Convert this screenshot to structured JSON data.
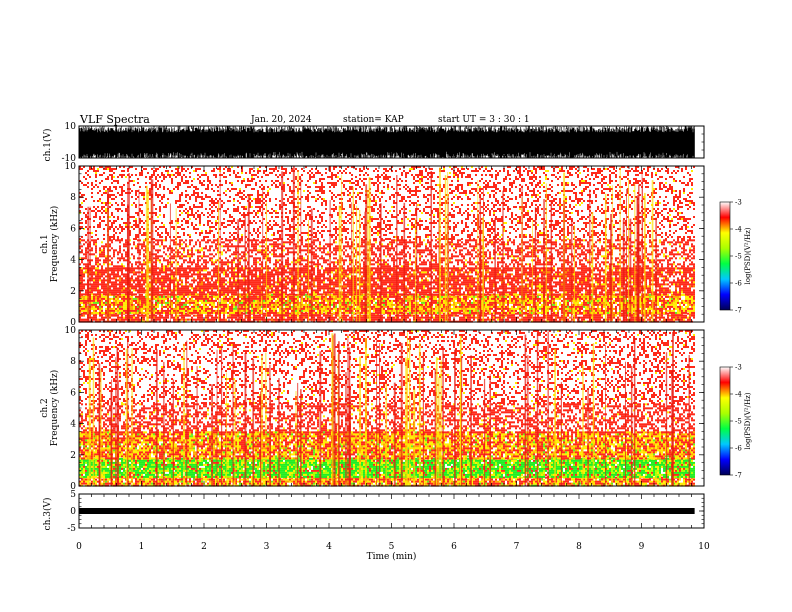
{
  "header": {
    "title": "VLF Spectra",
    "date": "Jan. 20, 2024",
    "station": "station= KAP",
    "start": "start  UT =  3 : 30 : 1"
  },
  "colors": {
    "spectrogram_bg": "#ffffff",
    "low": "#ff2a1a",
    "mid": "#ffee00",
    "high": "#22ee22",
    "cbar_stops": [
      "#000055",
      "#0000ff",
      "#00c8ff",
      "#00ff44",
      "#aaff00",
      "#ffff00",
      "#ff0000",
      "#ffffff"
    ]
  },
  "chart_data": [
    {
      "type": "line",
      "panel": "ch1-waveform",
      "ylabel": "ch.1(V)",
      "ylim": [
        -10,
        10
      ],
      "y_ticks": [
        "10",
        "-10"
      ],
      "description_values": {
        "amplitude_min_V": -10,
        "amplitude_max_V": 10
      }
    },
    {
      "type": "heatmap",
      "panel": "ch1-spectrogram",
      "ylabel": "ch.1\nFrequency (kHz)",
      "ylim": [
        0,
        10
      ],
      "y_ticks": [
        "0",
        "2",
        "4",
        "6",
        "8",
        "10"
      ],
      "xlim": [
        0,
        9.85
      ],
      "bands": [
        {
          "f_from": 0.0,
          "f_to": 0.6,
          "level": "dense-red"
        },
        {
          "f_from": 0.6,
          "f_to": 1.8,
          "level": "yellow-red"
        },
        {
          "f_from": 1.8,
          "f_to": 3.5,
          "level": "dense-red"
        },
        {
          "f_from": 3.5,
          "f_to": 5.3,
          "level": "medium-red"
        },
        {
          "f_from": 5.3,
          "f_to": 10.0,
          "level": "sparse-red"
        }
      ],
      "colorbar": {
        "label": "log(PSD)(V²/Hz)",
        "ticks": [
          "-3",
          "-4",
          "-5",
          "-6",
          "-7"
        ],
        "range": [
          -7,
          -3
        ]
      }
    },
    {
      "type": "heatmap",
      "panel": "ch2-spectrogram",
      "ylabel": "ch.2\nFrequency (kHz)",
      "ylim": [
        0,
        10
      ],
      "y_ticks": [
        "0",
        "2",
        "4",
        "6",
        "8",
        "10"
      ],
      "xlim": [
        0,
        9.85
      ],
      "bands": [
        {
          "f_from": 0.0,
          "f_to": 0.6,
          "level": "yellow-red"
        },
        {
          "f_from": 0.6,
          "f_to": 1.8,
          "level": "green"
        },
        {
          "f_from": 1.8,
          "f_to": 3.5,
          "level": "yellow-red"
        },
        {
          "f_from": 3.5,
          "f_to": 5.3,
          "level": "medium-red"
        },
        {
          "f_from": 5.3,
          "f_to": 10.0,
          "level": "sparse-red"
        }
      ],
      "colorbar": {
        "label": "log(PSD)(V²/Hz)",
        "ticks": [
          "-3",
          "-4",
          "-5",
          "-6",
          "-7"
        ],
        "range": [
          -7,
          -3
        ]
      }
    },
    {
      "type": "line",
      "panel": "ch3-waveform",
      "ylabel": "ch.3(V)",
      "ylim": [
        -5,
        5
      ],
      "y_ticks": [
        "5",
        "0",
        "-5"
      ],
      "level_V": 0
    }
  ],
  "x_axis": {
    "label": "Time  (min)",
    "ticks": [
      "0",
      "1",
      "2",
      "3",
      "4",
      "5",
      "6",
      "7",
      "8",
      "9",
      "10"
    ],
    "range": [
      0,
      10
    ]
  }
}
